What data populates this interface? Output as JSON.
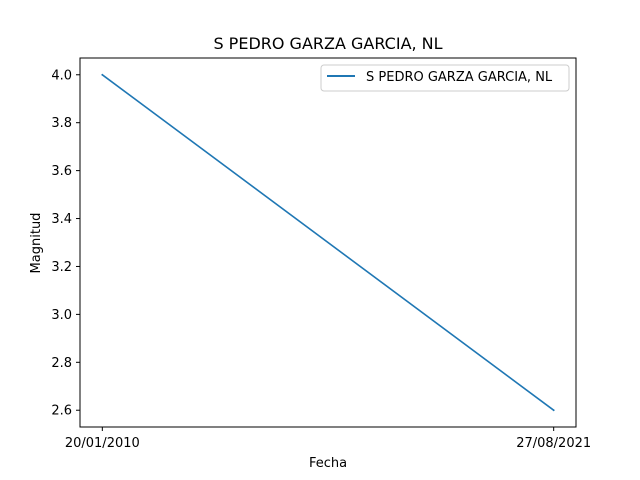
{
  "chart_data": {
    "type": "line",
    "title": "S PEDRO GARZA GARCIA, NL",
    "xlabel": "Fecha",
    "ylabel": "Magnitud",
    "categories": [
      "20/01/2010",
      "27/08/2021"
    ],
    "series": [
      {
        "name": "S PEDRO GARZA GARCIA, NL",
        "values": [
          4.0,
          2.6
        ],
        "color": "#1f77b4"
      }
    ],
    "ylim": [
      2.53,
      4.07
    ],
    "yticks": [
      2.6,
      2.8,
      3.0,
      3.2,
      3.4,
      3.6,
      3.8,
      4.0
    ],
    "ytick_labels": [
      "2.6",
      "2.8",
      "3.0",
      "3.2",
      "3.4",
      "3.6",
      "3.8",
      "4.0"
    ],
    "grid": false,
    "legend": "top-right"
  }
}
